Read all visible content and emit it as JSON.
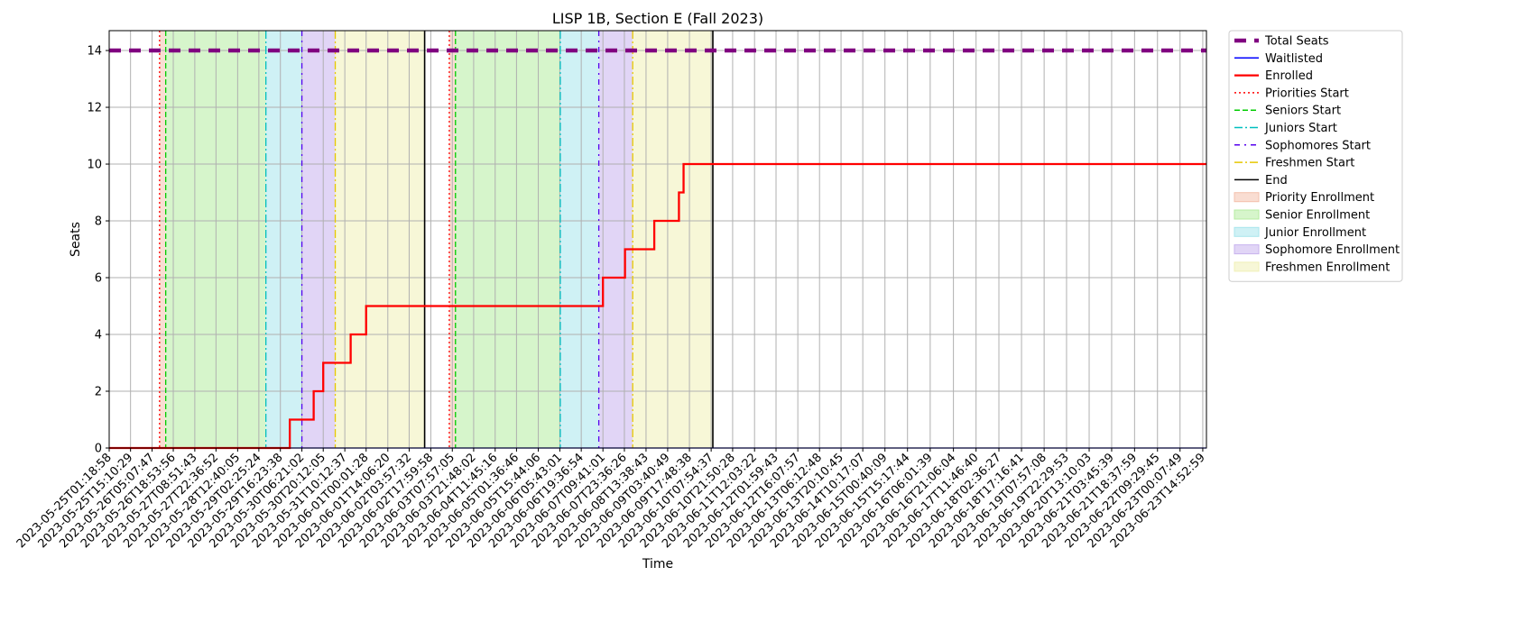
{
  "chart_data": {
    "type": "line",
    "title": "LISP 1B, Section E (Fall 2023)",
    "xlabel": "Time",
    "ylabel": "Seats",
    "ylim": [
      0,
      14.7
    ],
    "y_ticks": [
      0,
      2,
      4,
      6,
      8,
      10,
      12,
      14
    ],
    "grid": true,
    "legend_position": "outside-right-top",
    "x_range": [
      "2023-05-25T01:18:58",
      "2023-06-23T17:16:00"
    ],
    "x_ticks": [
      "2023-05-25T01:18:58",
      "2023-05-25T15:10:29",
      "2023-05-26T05:07:47",
      "2023-05-26T18:53:56",
      "2023-05-27T08:51:43",
      "2023-05-27T22:36:52",
      "2023-05-28T12:40:05",
      "2023-05-29T02:25:24",
      "2023-05-29T16:23:38",
      "2023-05-30T06:21:02",
      "2023-05-30T20:12:05",
      "2023-05-31T10:12:37",
      "2023-06-01T00:01:28",
      "2023-06-01T14:06:20",
      "2023-06-02T03:57:32",
      "2023-06-02T17:59:58",
      "2023-06-03T07:57:05",
      "2023-06-03T21:48:02",
      "2023-06-04T11:45:16",
      "2023-06-05T01:36:46",
      "2023-06-05T15:44:06",
      "2023-06-06T05:43:01",
      "2023-06-06T19:36:54",
      "2023-06-07T09:41:01",
      "2023-06-07T23:36:26",
      "2023-06-08T13:38:43",
      "2023-06-09T03:40:49",
      "2023-06-09T17:48:38",
      "2023-06-10T07:54:37",
      "2023-06-10T21:50:28",
      "2023-06-11T12:03:22",
      "2023-06-12T01:59:43",
      "2023-06-12T16:07:57",
      "2023-06-13T06:12:48",
      "2023-06-13T20:10:45",
      "2023-06-14T10:17:07",
      "2023-06-15T00:40:09",
      "2023-06-15T15:17:44",
      "2023-06-16T06:01:39",
      "2023-06-16T21:06:04",
      "2023-06-17T11:46:40",
      "2023-06-18T02:36:27",
      "2023-06-18T17:16:41",
      "2023-06-19T07:57:08",
      "2023-06-19T22:29:53",
      "2023-06-20T13:10:03",
      "2023-06-21T03:45:39",
      "2023-06-21T18:37:59",
      "2023-06-22T09:29:45",
      "2023-06-23T00:07:49",
      "2023-06-23T14:52:59"
    ],
    "series": [
      {
        "name": "Total Seats",
        "color": "#800080",
        "style": "dashed-thick",
        "x": [
          "2023-05-25T01:18:58",
          "2023-06-23T17:16:00"
        ],
        "y": [
          14,
          14
        ]
      },
      {
        "name": "Waitlisted",
        "color": "#0000ff",
        "style": "solid",
        "x": [
          "2023-05-25T01:18:58",
          "2023-06-23T17:16:00"
        ],
        "y": [
          0,
          0
        ]
      },
      {
        "name": "Enrolled",
        "color": "#ff0000",
        "style": "step",
        "x": [
          "2023-05-25T01:18:58",
          "2023-05-29T22:30:00",
          "2023-05-30T14:00:00",
          "2023-05-30T20:12:05",
          "2023-05-31T14:00:00",
          "2023-06-01T00:01:28",
          "2023-06-07T09:41:01",
          "2023-06-08T00:00:00",
          "2023-06-08T19:00:00",
          "2023-06-09T11:00:00",
          "2023-06-09T14:00:00",
          "2023-06-23T17:16:00"
        ],
        "y": [
          0,
          1,
          2,
          3,
          4,
          5,
          6,
          7,
          8,
          9,
          10,
          10
        ]
      }
    ],
    "markers": [
      {
        "name": "Priorities Start",
        "color": "#ff0000",
        "style": "dotted",
        "x": [
          "2023-05-26T10:00:00",
          "2023-06-03T06:00:00"
        ]
      },
      {
        "name": "Seniors Start",
        "color": "#00cc00",
        "style": "dashed",
        "x": [
          "2023-05-26T14:00:00",
          "2023-06-03T10:00:00"
        ]
      },
      {
        "name": "Juniors Start",
        "color": "#00bfbf",
        "style": "dashdot",
        "x": [
          "2023-05-29T07:00:00",
          "2023-06-06T06:00:00"
        ]
      },
      {
        "name": "Sophomores Start",
        "color": "#5500ee",
        "style": "dashdot-sparse",
        "x": [
          "2023-05-30T06:21:02",
          "2023-06-07T07:00:00"
        ]
      },
      {
        "name": "Freshmen Start",
        "color": "#e6c800",
        "style": "dashdot",
        "x": [
          "2023-05-31T04:00:00",
          "2023-06-08T05:00:00"
        ]
      },
      {
        "name": "End",
        "color": "#000000",
        "style": "solid",
        "x": [
          "2023-06-02T14:00:00",
          "2023-06-10T09:00:00"
        ]
      }
    ],
    "regions": [
      {
        "name": "Priority Enrollment",
        "color": "#f4c1ad",
        "spans": [
          [
            "2023-05-26T10:00:00",
            "2023-05-26T14:00:00"
          ],
          [
            "2023-06-03T06:00:00",
            "2023-06-03T10:00:00"
          ]
        ]
      },
      {
        "name": "Senior Enrollment",
        "color": "#b5eca0",
        "spans": [
          [
            "2023-05-26T14:00:00",
            "2023-05-29T07:00:00"
          ],
          [
            "2023-06-03T10:00:00",
            "2023-06-06T06:00:00"
          ]
        ]
      },
      {
        "name": "Junior Enrollment",
        "color": "#a8e6ec",
        "spans": [
          [
            "2023-05-29T07:00:00",
            "2023-05-30T06:21:02"
          ],
          [
            "2023-06-06T06:00:00",
            "2023-06-07T07:00:00"
          ]
        ]
      },
      {
        "name": "Sophomore Enrollment",
        "color": "#c8b3ee",
        "spans": [
          [
            "2023-05-30T06:21:02",
            "2023-05-31T04:00:00"
          ],
          [
            "2023-06-07T07:00:00",
            "2023-06-08T05:00:00"
          ]
        ]
      },
      {
        "name": "Freshmen Enrollment",
        "color": "#f1f1b7",
        "spans": [
          [
            "2023-05-31T04:00:00",
            "2023-06-02T14:00:00"
          ],
          [
            "2023-06-08T05:00:00",
            "2023-06-10T09:00:00"
          ]
        ]
      }
    ]
  }
}
